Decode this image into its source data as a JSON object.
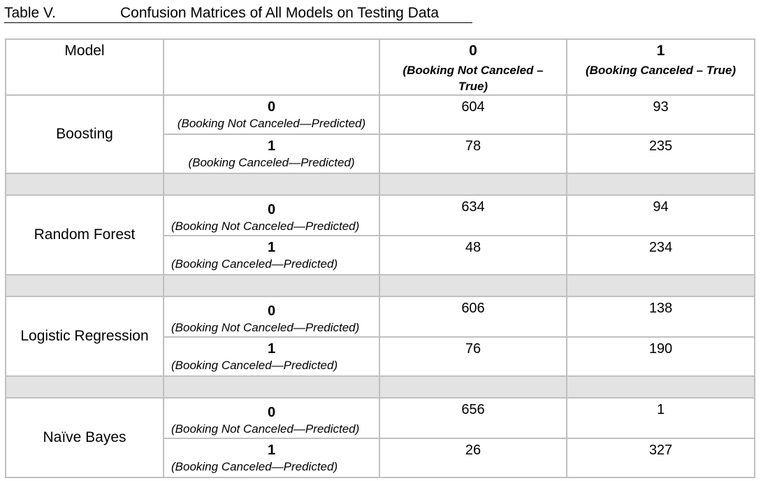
{
  "caption": {
    "label": "Table V.",
    "title": "Confusion Matrices of All Models on Testing Data"
  },
  "header": {
    "model": "Model",
    "col0_num": "0",
    "col0_sub": "(Booking Not Canceled – True)",
    "col1_num": "1",
    "col1_sub": "(Booking Canceled – True)"
  },
  "pred_labels": {
    "p0_num": "0",
    "p0_sub": "(Booking Not Canceled—Predicted)",
    "p1_num": "1",
    "p1_sub": "(Booking Canceled—Predicted)"
  },
  "models": [
    {
      "name": "Boosting",
      "rows": [
        [
          "604",
          "93"
        ],
        [
          "78",
          "235"
        ]
      ]
    },
    {
      "name": "Random Forest",
      "rows": [
        [
          "634",
          "94"
        ],
        [
          "48",
          "234"
        ]
      ]
    },
    {
      "name": "Logistic Regression",
      "rows": [
        [
          "606",
          "138"
        ],
        [
          "76",
          "190"
        ]
      ]
    },
    {
      "name": "Naïve Bayes",
      "rows": [
        [
          "656",
          "1"
        ],
        [
          "26",
          "327"
        ]
      ]
    }
  ]
}
